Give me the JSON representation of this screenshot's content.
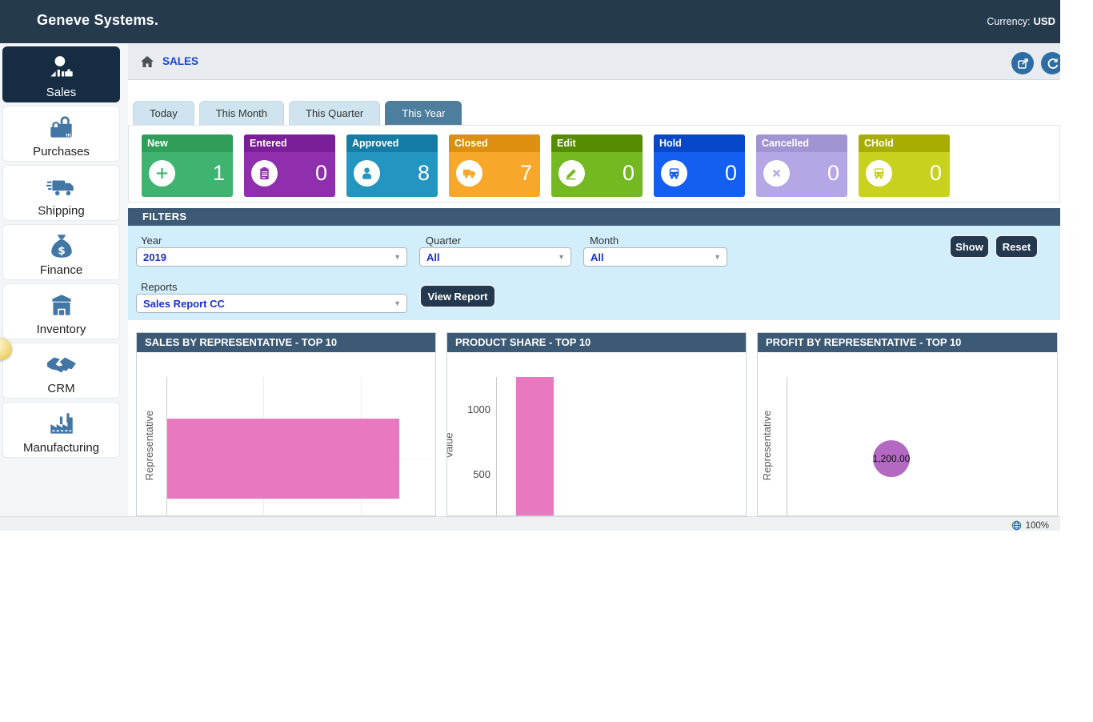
{
  "topbar": {
    "title": "Geneve Systems.",
    "currency_label": "Currency:",
    "currency_value": "USD"
  },
  "breadcrumb": {
    "page": "SALES"
  },
  "sidebar": {
    "items": [
      {
        "label": "Sales",
        "icon": "salesperson-icon",
        "active": true
      },
      {
        "label": "Purchases",
        "icon": "shopping-bags-icon",
        "active": false
      },
      {
        "label": "Shipping",
        "icon": "delivery-truck-icon",
        "active": false
      },
      {
        "label": "Finance",
        "icon": "money-bag-icon",
        "active": false
      },
      {
        "label": "Inventory",
        "icon": "warehouse-icon",
        "active": false
      },
      {
        "label": "CRM",
        "icon": "handshake-icon",
        "active": false
      },
      {
        "label": "Manufacturing",
        "icon": "factory-icon",
        "active": false
      }
    ]
  },
  "tabs": [
    {
      "label": "Today",
      "active": false
    },
    {
      "label": "This Month",
      "active": false
    },
    {
      "label": "This Quarter",
      "active": false
    },
    {
      "label": "This Year",
      "active": true
    }
  ],
  "status_cards": [
    {
      "label": "New",
      "value": 1,
      "icon": "plus-circle-icon",
      "header_color": "#2f9e59",
      "body_color": "#41b371"
    },
    {
      "label": "Entered",
      "value": 0,
      "icon": "clipboard-icon",
      "header_color": "#7a1f98",
      "body_color": "#8f2fae"
    },
    {
      "label": "Approved",
      "value": 8,
      "icon": "approver-person-icon",
      "header_color": "#157da5",
      "body_color": "#2295c1"
    },
    {
      "label": "Closed",
      "value": 7,
      "icon": "truck-icon",
      "header_color": "#dd8f10",
      "body_color": "#f7a82a"
    },
    {
      "label": "Edit",
      "value": 0,
      "icon": "pencil-icon",
      "header_color": "#568c00",
      "body_color": "#74b822"
    },
    {
      "label": "Hold",
      "value": 0,
      "icon": "bus-icon",
      "header_color": "#0748c8",
      "body_color": "#135ff2"
    },
    {
      "label": "Cancelled",
      "value": 0,
      "icon": "x-circle-icon",
      "header_color": "#a294d2",
      "body_color": "#b5a7e6"
    },
    {
      "label": "CHold",
      "value": 0,
      "icon": "bus-icon",
      "header_color": "#a8ae00",
      "body_color": "#c9d11f"
    }
  ],
  "filters": {
    "title": "FILTERS",
    "year": {
      "label": "Year",
      "value": "2019"
    },
    "quarter": {
      "label": "Quarter",
      "value": "All"
    },
    "month": {
      "label": "Month",
      "value": "All"
    },
    "reports": {
      "label": "Reports",
      "value": "Sales Report CC"
    },
    "show_button": "Show",
    "reset_button": "Reset",
    "view_report_button": "View Report"
  },
  "chart_data": [
    {
      "type": "bar",
      "orientation": "horizontal",
      "title": "SALES BY REPRESENTATIVE - TOP 10",
      "ylabel": "Representative",
      "series": [
        {
          "name": "Sales",
          "values": [
            1200
          ]
        }
      ],
      "xlim": [
        0,
        1500
      ],
      "grid": true,
      "bar_color": "#e879c1"
    },
    {
      "type": "bar",
      "orientation": "vertical",
      "title": "PRODUCT SHARE - TOP 10",
      "ylabel": "Value",
      "yticks": [
        1000,
        500
      ],
      "series": [
        {
          "name": "Value",
          "values": [
            1200
          ]
        }
      ],
      "ylim": [
        0,
        1300
      ],
      "grid": false,
      "bar_color": "#e879c1"
    },
    {
      "type": "bubble",
      "title": "PROFIT BY REPRESENTATIVE - TOP 10",
      "ylabel": "Representative",
      "points": [
        {
          "label": "1,200.00",
          "value": 1200
        }
      ],
      "bubble_color": "#b368c2"
    }
  ],
  "statusbar": {
    "zoom_level": "100%"
  }
}
